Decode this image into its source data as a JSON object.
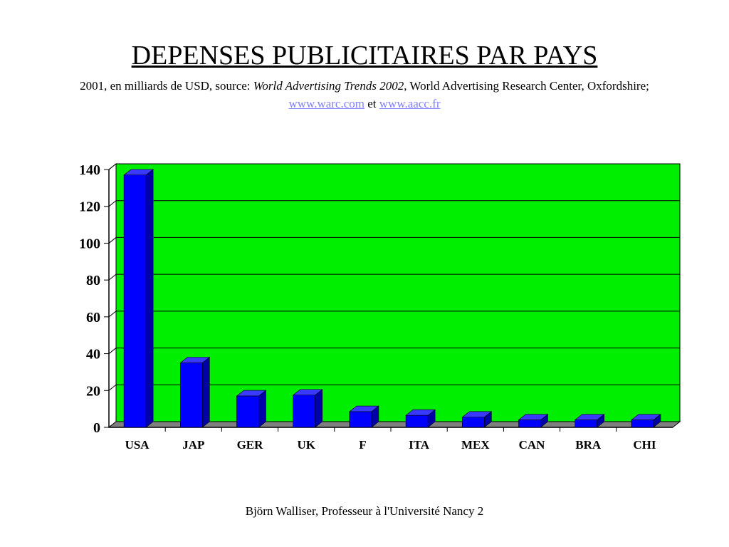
{
  "header": {
    "title": "DEPENSES PUBLICITAIRES PAR PAYS",
    "subtitle_prefix": "2001, en milliards de USD, source: ",
    "subtitle_italic": "World Advertising Trends 2002",
    "subtitle_suffix": ", World Advertising Research Center, Oxfordshire; ",
    "link1": "www.warc.com",
    "connector": " et ",
    "link2": "www.aacc.fr"
  },
  "footer": {
    "text": "Björn Walliser, Professeur à l'Université Nancy 2"
  },
  "colors": {
    "plot_background": "#00ee00",
    "bar_front": "#0000ff",
    "bar_side": "#0000a8",
    "bar_top": "#3a3aff",
    "floor": "#808080",
    "link": "#8080ff"
  },
  "chart_data": {
    "type": "bar",
    "categories": [
      "USA",
      "JAP",
      "GER",
      "UK",
      "F",
      "ITA",
      "MEX",
      "CAN",
      "BRA",
      "CHI"
    ],
    "values": [
      137,
      35,
      17,
      17.5,
      8.5,
      6.5,
      5.5,
      4,
      4,
      4
    ],
    "ylim": [
      0,
      140
    ],
    "yticks": [
      0,
      20,
      40,
      60,
      80,
      100,
      120,
      140
    ],
    "grid": true,
    "legend": "none"
  }
}
